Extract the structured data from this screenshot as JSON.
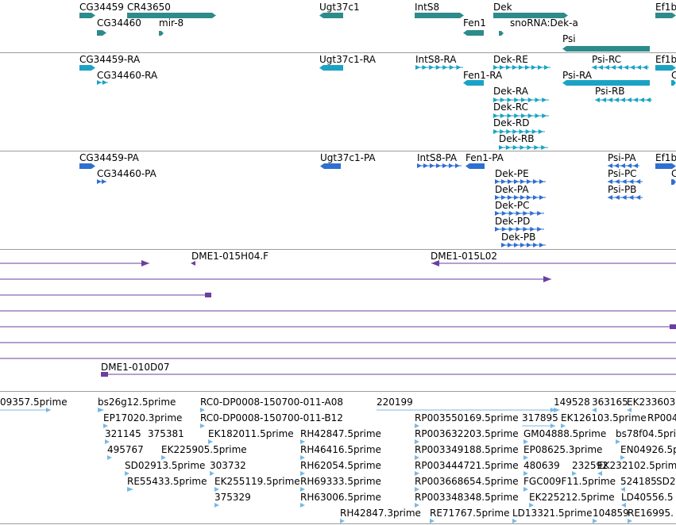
{
  "colors": {
    "gene": "#2e8b8b",
    "transcript": "#1aa3c4",
    "protein": "#2f6fd1",
    "clone": "#6a3fa0",
    "est": "#79b8e4",
    "separator": "#9c9c9c"
  },
  "tracks": {
    "genes": [
      {
        "label": "CG34459",
        "strand": "+",
        "style": "block"
      },
      {
        "label": "CR43650",
        "strand": "+",
        "style": "block"
      },
      {
        "label": "CG34460",
        "strand": "+",
        "style": "block"
      },
      {
        "label": "mir-8",
        "strand": "+",
        "style": "tick"
      },
      {
        "label": "Ugt37c1",
        "strand": "-",
        "style": "block"
      },
      {
        "label": "IntS8",
        "strand": "+",
        "style": "block"
      },
      {
        "label": "Fen1",
        "strand": "-",
        "style": "block"
      },
      {
        "label": "Dek",
        "strand": "+",
        "style": "block"
      },
      {
        "label": "snoRNA:Dek-a",
        "strand": "+",
        "style": "tick"
      },
      {
        "label": "Ef1b",
        "strand": "+",
        "style": "block"
      },
      {
        "label": "Psi",
        "strand": "-",
        "style": "block"
      }
    ],
    "transcripts": [
      {
        "label": "CG34459-RA",
        "strand": "+"
      },
      {
        "label": "CG34460-RA",
        "strand": "+"
      },
      {
        "label": "Ugt37c1-RA",
        "strand": "-"
      },
      {
        "label": "IntS8-RA",
        "strand": "+"
      },
      {
        "label": "Dek-RE",
        "strand": "+"
      },
      {
        "label": "Psi-RC",
        "strand": "-"
      },
      {
        "label": "Ef1b",
        "strand": "+"
      },
      {
        "label": "Fen1-RA",
        "strand": "-"
      },
      {
        "label": "Psi-RA",
        "strand": "-"
      },
      {
        "label": "C",
        "strand": "+"
      },
      {
        "label": "Dek-RA",
        "strand": "+"
      },
      {
        "label": "Psi-RB",
        "strand": "-"
      },
      {
        "label": "Dek-RC",
        "strand": "+"
      },
      {
        "label": "Dek-RD",
        "strand": "+"
      },
      {
        "label": "Dek-RB",
        "strand": "+"
      }
    ],
    "proteins": [
      {
        "label": "CG34459-PA",
        "strand": "+"
      },
      {
        "label": "CG34460-PA",
        "strand": "+"
      },
      {
        "label": "Ugt37c1-PA",
        "strand": "-"
      },
      {
        "label": "IntS8-PA",
        "strand": "+"
      },
      {
        "label": "Fen1-PA",
        "strand": "-"
      },
      {
        "label": "Psi-PA",
        "strand": "-"
      },
      {
        "label": "Ef1b",
        "strand": "+"
      },
      {
        "label": "Dek-PE",
        "strand": "+"
      },
      {
        "label": "Psi-PC",
        "strand": "-"
      },
      {
        "label": "C",
        "strand": "+"
      },
      {
        "label": "Dek-PA",
        "strand": "+"
      },
      {
        "label": "Psi-PB",
        "strand": "-"
      },
      {
        "label": "Dek-PC",
        "strand": "+"
      },
      {
        "label": "Dek-PD",
        "strand": "+"
      },
      {
        "label": "Dek-PB",
        "strand": "+"
      }
    ],
    "clones": [
      {
        "label": "DME1-015H04.F",
        "strand": "-"
      },
      {
        "label": "DME1-015L02",
        "strand": "-"
      },
      {
        "label": "",
        "strand": "+"
      },
      {
        "label": "",
        "strand": "+"
      },
      {
        "label": "",
        "strand": "+"
      },
      {
        "label": "",
        "strand": "+"
      },
      {
        "label": "DME1-010D07",
        "strand": "+"
      }
    ],
    "ests": [
      "09357.5prime",
      "bs26g12.5prime",
      "RC0-DP0008-150700-011-A08",
      "220199",
      "149528",
      "363165",
      "EK233603",
      "EP17020.3prime",
      "RC0-DP0008-150700-011-B12",
      "RP003550169.5prime",
      "317895",
      "EK126103.5prime",
      "RP004",
      "321145",
      "375381",
      "EK182011.5prime",
      "RH42847.5prime",
      "RP003632203.5prime",
      "GM04888.5prime",
      "bs78f04.5prime",
      "495767",
      "EK225905.5prime",
      "RH46416.5prime",
      "RP003349188.5prime",
      "EP08625.3prime",
      "EN04926.5p",
      "SD02913.5prime",
      "303732",
      "RH62054.5prime",
      "RP003444721.5prime",
      "480639",
      "232592",
      "EK232102.5prime",
      "RE55433.5prime",
      "EK255119.5prime",
      "RH69333.5prime",
      "RP003668654.5prime",
      "FGC009F11.5prime",
      "524185",
      "SD2",
      "375329",
      "RH63006.5prime",
      "RP003348348.5prime",
      "EK225212.5prime",
      "LD40556.5",
      "RH42847.3prime",
      "RE71767.5prime",
      "LD13321.5prime",
      "104859",
      "RE16995."
    ]
  }
}
